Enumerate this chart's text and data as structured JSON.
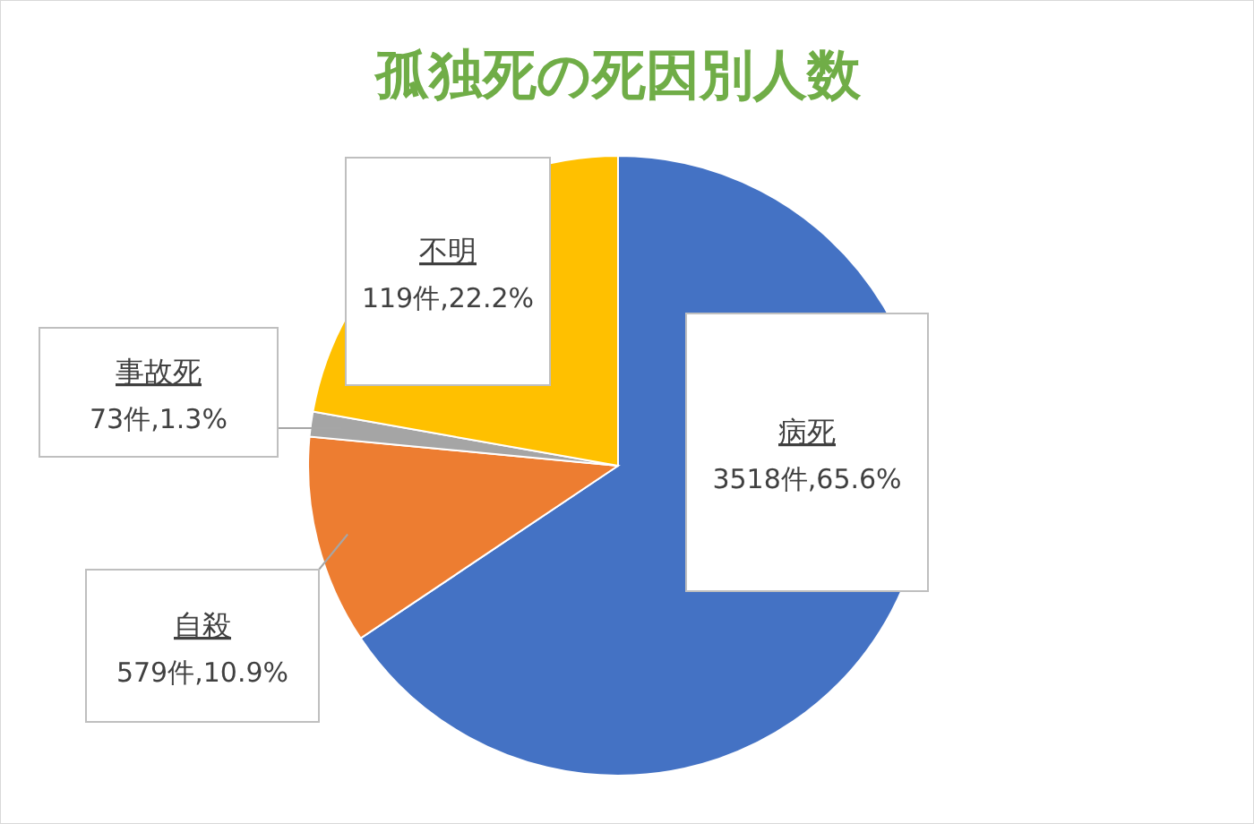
{
  "chart_data": {
    "type": "pie",
    "title": "孤独死の死因別人数",
    "categories": [
      "病死",
      "自殺",
      "事故死",
      "不明"
    ],
    "values": [
      65.6,
      10.9,
      1.3,
      22.2
    ],
    "colors": [
      "#4472c4",
      "#ed7d31",
      "#a5a5a5",
      "#ffc000"
    ],
    "value_labels": [
      "3518件,65.6%",
      "579件,10.9%",
      "73件,1.3%",
      "119件,22.2%"
    ]
  }
}
